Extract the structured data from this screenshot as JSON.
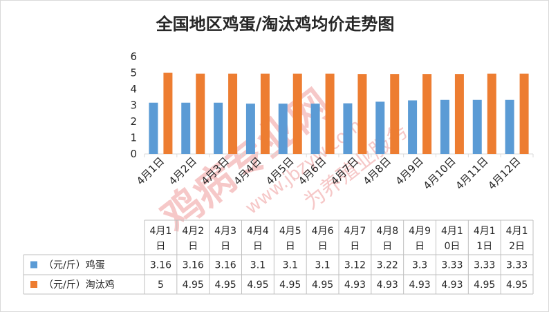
{
  "chart_data": {
    "type": "bar",
    "title": "全国地区鸡蛋/淘汰鸡均价走势图",
    "categories": [
      "4月1日",
      "4月2日",
      "4月3日",
      "4月4日",
      "4月5日",
      "4月6日",
      "4月7日",
      "4月8日",
      "4月9日",
      "4月10日",
      "4月11日",
      "4月12日"
    ],
    "table_headers": [
      [
        "4月1",
        "日"
      ],
      [
        "4月2",
        "日"
      ],
      [
        "4月3",
        "日"
      ],
      [
        "4月4",
        "日"
      ],
      [
        "4月5",
        "日"
      ],
      [
        "4月6",
        "日"
      ],
      [
        "4月7",
        "日"
      ],
      [
        "4月8",
        "日"
      ],
      [
        "4月9",
        "日"
      ],
      [
        "4月1",
        "0日"
      ],
      [
        "4月1",
        "1日"
      ],
      [
        "4月1",
        "2日"
      ]
    ],
    "series": [
      {
        "name": "（元/斤）鸡蛋",
        "color": "#5b9bd5",
        "values": [
          3.16,
          3.16,
          3.16,
          3.1,
          3.1,
          3.1,
          3.12,
          3.22,
          3.3,
          3.33,
          3.33,
          3.33
        ]
      },
      {
        "name": "（元/斤）淘汰鸡",
        "color": "#ed7d31",
        "values": [
          5,
          4.95,
          4.95,
          4.95,
          4.95,
          4.95,
          4.93,
          4.93,
          4.93,
          4.93,
          4.95,
          4.95
        ]
      }
    ],
    "ylim": [
      0,
      6
    ],
    "yticks": [
      0,
      1,
      2,
      3,
      4,
      5,
      6
    ],
    "grid": false,
    "legend": "table",
    "data_table": true
  },
  "watermark": {
    "main": "鸡病专业网",
    "url": "www.jbzyw.com",
    "slogan": "为养殖业服务"
  }
}
